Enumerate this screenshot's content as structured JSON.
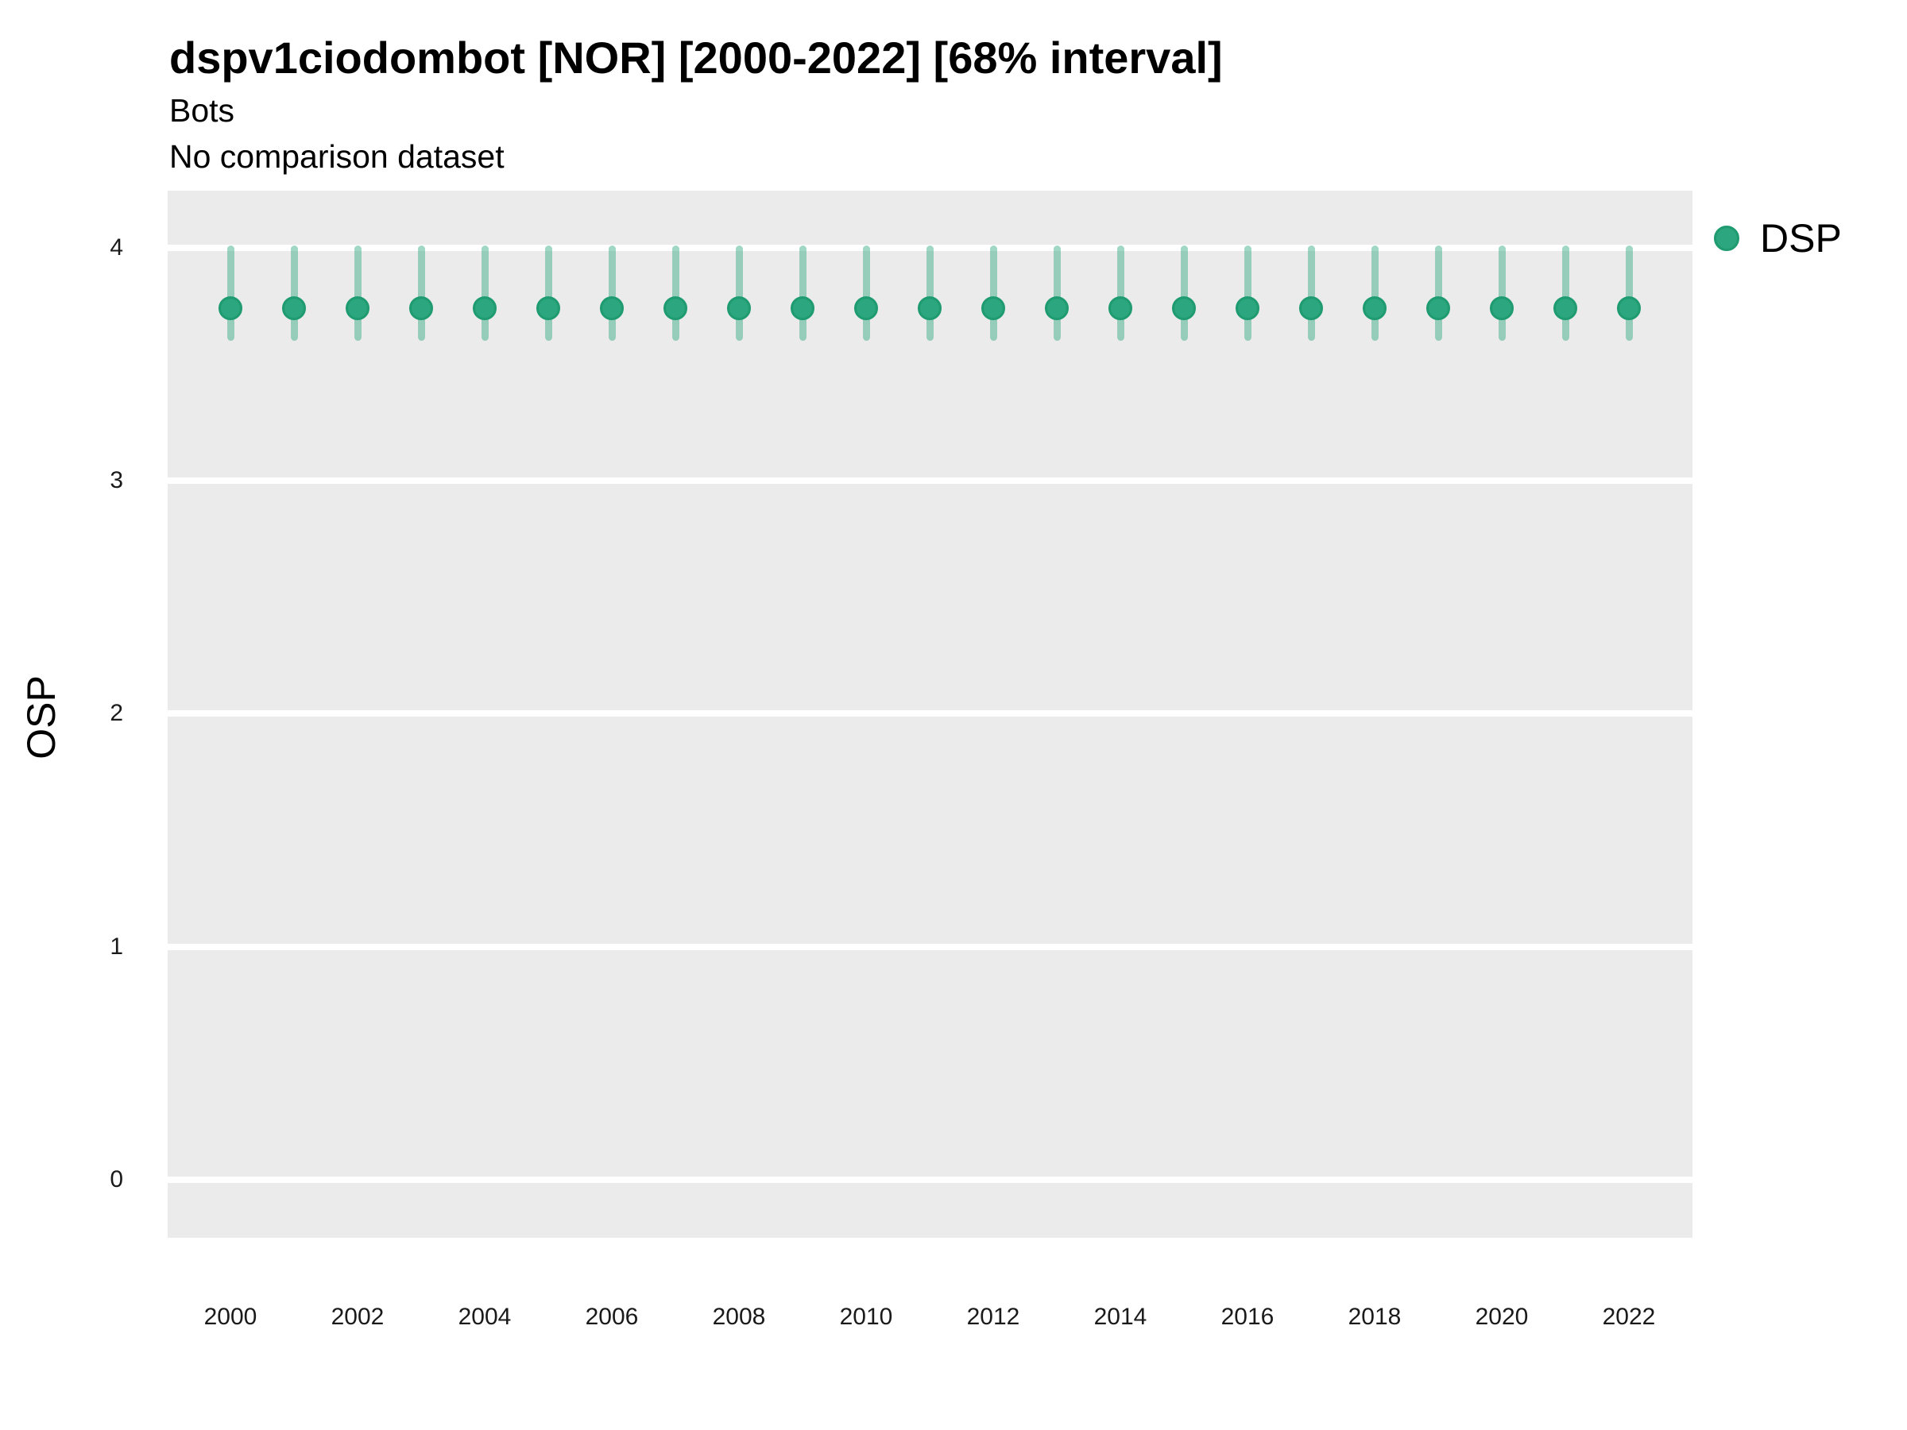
{
  "header": {
    "title": "dspv1ciodombot [NOR] [2000-2022] [68% interval]",
    "subtitle": "Bots",
    "comparison_note": "No comparison dataset"
  },
  "legend": {
    "position": "right-top",
    "items": [
      {
        "label": "DSP",
        "color": "#2ca67e"
      }
    ]
  },
  "colors": {
    "point_fill": "#2ca67e",
    "point_ring": "#1f9b70",
    "interval_bar": "rgba(44,166,126,0.45)",
    "panel_background": "#ebebeb",
    "gridline": "#ffffff",
    "text": "#000000",
    "tick_text": "#1a1a1a"
  },
  "chart_data": {
    "type": "scatter",
    "subtype": "pointrange (median with 68% interval whiskers)",
    "title": "dspv1ciodombot [NOR] [2000-2022] [68% interval]",
    "subtitle": "Bots",
    "note": "No comparison dataset",
    "xlabel": "",
    "ylabel": "OSP",
    "x": [
      2000,
      2001,
      2002,
      2003,
      2004,
      2005,
      2006,
      2007,
      2008,
      2009,
      2010,
      2011,
      2012,
      2013,
      2014,
      2015,
      2016,
      2017,
      2018,
      2019,
      2020,
      2021,
      2022
    ],
    "series": [
      {
        "name": "DSP",
        "median": [
          3.74,
          3.74,
          3.74,
          3.74,
          3.74,
          3.74,
          3.74,
          3.74,
          3.74,
          3.74,
          3.74,
          3.74,
          3.74,
          3.74,
          3.74,
          3.74,
          3.74,
          3.74,
          3.74,
          3.74,
          3.74,
          3.74,
          3.74
        ],
        "lower_68": [
          3.6,
          3.6,
          3.6,
          3.6,
          3.6,
          3.6,
          3.6,
          3.6,
          3.6,
          3.6,
          3.6,
          3.6,
          3.6,
          3.6,
          3.6,
          3.6,
          3.6,
          3.6,
          3.6,
          3.6,
          3.6,
          3.6,
          3.6
        ],
        "upper_68": [
          4.01,
          4.01,
          4.01,
          4.01,
          4.01,
          4.01,
          4.01,
          4.01,
          4.01,
          4.01,
          4.01,
          4.01,
          4.01,
          4.01,
          4.01,
          4.01,
          4.01,
          4.01,
          4.01,
          4.01,
          4.01,
          4.01,
          4.01
        ]
      }
    ],
    "x_tick_labels": [
      "2000",
      "2002",
      "2004",
      "2006",
      "2008",
      "2010",
      "2012",
      "2014",
      "2016",
      "2018",
      "2020",
      "2022"
    ],
    "x_tick_values": [
      2000,
      2002,
      2004,
      2006,
      2008,
      2010,
      2012,
      2014,
      2016,
      2018,
      2020,
      2022
    ],
    "y_ticks": [
      0,
      1,
      2,
      3,
      4
    ],
    "ylim": [
      -0.25,
      4.25
    ],
    "xlim": [
      1999.01,
      2023.0
    ],
    "grid": "major horizontal white lines on gray panel, no minor grid",
    "legend_position": "right-top"
  }
}
